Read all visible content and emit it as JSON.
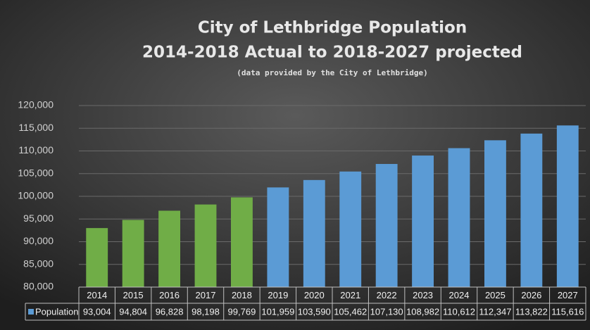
{
  "chart_data": {
    "type": "bar",
    "title": "City of Lethbridge Population",
    "subtitle": "2014-2018 Actual to 2018-2027 projected",
    "note": "(data provided by the City of Lethbridge)",
    "categories": [
      "2014",
      "2015",
      "2016",
      "2017",
      "2018",
      "2019",
      "2020",
      "2021",
      "2022",
      "2023",
      "2024",
      "2025",
      "2026",
      "2027"
    ],
    "series": [
      {
        "name": "Population",
        "color": "#5b9bd5",
        "colors": [
          "#70ad47",
          "#70ad47",
          "#70ad47",
          "#70ad47",
          "#70ad47",
          "#5b9bd5",
          "#5b9bd5",
          "#5b9bd5",
          "#5b9bd5",
          "#5b9bd5",
          "#5b9bd5",
          "#5b9bd5",
          "#5b9bd5",
          "#5b9bd5"
        ],
        "values": [
          93004,
          94804,
          96828,
          98198,
          99769,
          101959,
          103590,
          105462,
          107130,
          108982,
          110612,
          112347,
          113822,
          115616
        ],
        "value_labels": [
          "93,004",
          "94,804",
          "96,828",
          "98,198",
          "99,769",
          "101,959",
          "103,590",
          "105,462",
          "107,130",
          "108,982",
          "110,612",
          "112,347",
          "113,822",
          "115,616"
        ]
      }
    ],
    "ylim": [
      80000,
      120000
    ],
    "yticks": [
      {
        "value": 80000,
        "label": "80,000"
      },
      {
        "value": 85000,
        "label": "85,000"
      },
      {
        "value": 90000,
        "label": "90,000"
      },
      {
        "value": 95000,
        "label": "95,000"
      },
      {
        "value": 100000,
        "label": "100,000"
      },
      {
        "value": 105000,
        "label": "105,000"
      },
      {
        "value": 110000,
        "label": "110,000"
      },
      {
        "value": 115000,
        "label": "115,000"
      },
      {
        "value": 120000,
        "label": "120,000"
      }
    ],
    "grid": true,
    "data_table": true
  }
}
